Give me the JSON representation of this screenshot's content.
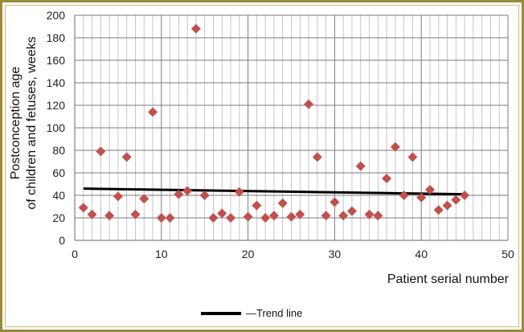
{
  "chart_data": {
    "type": "scatter",
    "xlabel": "Patient serial number",
    "ylabel_lines": [
      "Postconception age",
      "of children and fetuses, weeks"
    ],
    "xlim": [
      0,
      50
    ],
    "ylim": [
      0,
      200
    ],
    "x_ticks": [
      0,
      10,
      20,
      30,
      40,
      50
    ],
    "y_ticks": [
      0,
      20,
      40,
      60,
      80,
      100,
      120,
      140,
      160,
      180,
      200
    ],
    "grid": true,
    "series": [
      {
        "marker": "diamond",
        "color": "#c0504d",
        "x": [
          1,
          2,
          3,
          4,
          5,
          6,
          7,
          8,
          9,
          10,
          11,
          12,
          13,
          14,
          15,
          16,
          17,
          18,
          19,
          20,
          21,
          22,
          23,
          24,
          25,
          26,
          27,
          28,
          29,
          30,
          31,
          32,
          33,
          34,
          35,
          36,
          37,
          38,
          39,
          40,
          41,
          42,
          43,
          44,
          45
        ],
        "y": [
          29,
          23,
          79,
          22,
          39,
          74,
          23,
          37,
          114,
          20,
          20,
          41,
          44,
          188,
          40,
          20,
          24,
          20,
          43,
          21,
          31,
          20,
          22,
          33,
          21,
          23,
          121,
          74,
          22,
          34,
          22,
          26,
          66,
          23,
          22,
          55,
          83,
          40,
          74,
          38,
          45,
          27,
          31,
          36,
          40
        ]
      }
    ],
    "trend_line": {
      "name": "—Trend line",
      "color": "#000000",
      "x": [
        1,
        45
      ],
      "y": [
        46,
        41
      ]
    },
    "legend_position": "bottom-center"
  }
}
